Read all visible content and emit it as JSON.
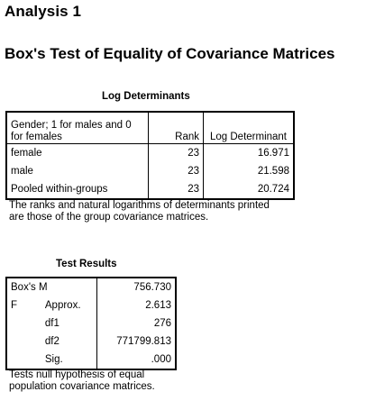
{
  "analysis_title": "Analysis 1",
  "test_title": "Box's Test of Equality of Covariance Matrices",
  "log_determinants": {
    "caption": "Log Determinants",
    "header": {
      "group_label": "Gender; 1 for males and 0 for females",
      "rank": "Rank",
      "determinant": "Log Determinant"
    },
    "rows": [
      {
        "group": "female",
        "rank": "23",
        "log_det": "16.971"
      },
      {
        "group": "male",
        "rank": "23",
        "log_det": "21.598"
      },
      {
        "group": "Pooled within-groups",
        "rank": "23",
        "log_det": "20.724"
      }
    ],
    "footnote": "The ranks and natural logarithms of determinants printed are those of the group covariance matrices."
  },
  "test_results": {
    "caption": "Test Results",
    "boxs_m_label": "Box's M",
    "boxs_m_value": "756.730",
    "f_label": "F",
    "rows": [
      {
        "stat": "Approx.",
        "value": "2.613"
      },
      {
        "stat": "df1",
        "value": "276"
      },
      {
        "stat": "df2",
        "value": "771799.813"
      },
      {
        "stat": "Sig.",
        "value": ".000"
      }
    ],
    "footnote": "Tests null hypothesis of equal population covariance matrices."
  }
}
